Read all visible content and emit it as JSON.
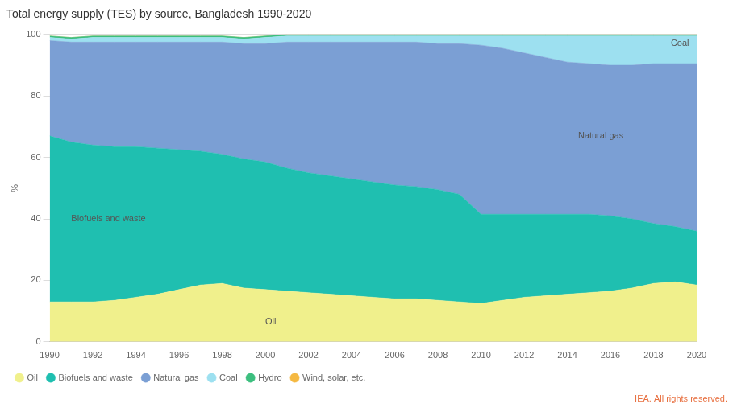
{
  "chart_data": {
    "type": "stacked_area",
    "title": "Total energy supply (TES) by source, Bangladesh 1990-2020",
    "y_label": "%",
    "x": [
      1990,
      1991,
      1992,
      1993,
      1994,
      1995,
      1996,
      1997,
      1998,
      1999,
      2000,
      2001,
      2002,
      2003,
      2004,
      2005,
      2006,
      2007,
      2008,
      2009,
      2010,
      2011,
      2012,
      2013,
      2014,
      2015,
      2016,
      2017,
      2018,
      2019,
      2020
    ],
    "series": [
      {
        "name": "Oil",
        "color": "#f0f08c",
        "values": [
          13.0,
          13.0,
          13.0,
          13.5,
          14.5,
          15.5,
          17.0,
          18.5,
          19.0,
          17.5,
          17.0,
          16.5,
          16.0,
          15.5,
          15.0,
          14.5,
          14.0,
          14.0,
          13.5,
          13.0,
          12.5,
          13.5,
          14.5,
          15.0,
          15.5,
          16.0,
          16.5,
          17.5,
          19.0,
          19.5,
          18.5
        ]
      },
      {
        "name": "Biofuels and waste",
        "color": "#1fbfb0",
        "values": [
          54.0,
          52.0,
          51.0,
          50.0,
          49.0,
          47.5,
          45.5,
          43.5,
          42.0,
          42.0,
          41.5,
          40.0,
          39.0,
          38.5,
          38.0,
          37.5,
          37.0,
          36.5,
          36.0,
          35.0,
          29.0,
          28.0,
          27.0,
          26.5,
          26.0,
          25.5,
          24.5,
          22.5,
          19.5,
          18.0,
          17.5
        ]
      },
      {
        "name": "Natural gas",
        "color": "#7b9fd4",
        "values": [
          31.0,
          32.5,
          33.5,
          34.0,
          34.0,
          34.5,
          35.0,
          35.5,
          36.5,
          37.5,
          38.5,
          41.0,
          42.5,
          43.5,
          44.5,
          45.5,
          46.5,
          47.0,
          47.5,
          49.0,
          55.0,
          54.0,
          52.5,
          51.0,
          49.5,
          49.0,
          49.0,
          50.0,
          52.0,
          53.0,
          54.5
        ]
      },
      {
        "name": "Coal",
        "color": "#9de0f0",
        "values": [
          1.0,
          1.0,
          1.5,
          1.5,
          1.5,
          1.5,
          1.5,
          1.5,
          1.5,
          1.5,
          2.0,
          2.0,
          2.0,
          2.0,
          2.0,
          2.0,
          2.0,
          2.0,
          2.5,
          2.5,
          3.0,
          4.0,
          5.5,
          7.0,
          8.5,
          9.0,
          9.5,
          9.5,
          9.0,
          9.0,
          9.0
        ]
      },
      {
        "name": "Hydro",
        "color": "#3dbf7f",
        "values": [
          0.5,
          0.5,
          0.5,
          0.5,
          0.5,
          0.5,
          0.5,
          0.5,
          0.5,
          0.5,
          0.5,
          0.5,
          0.5,
          0.5,
          0.5,
          0.5,
          0.5,
          0.5,
          0.5,
          0.5,
          0.5,
          0.5,
          0.5,
          0.5,
          0.5,
          0.5,
          0.5,
          0.5,
          0.5,
          0.5,
          0.5
        ]
      },
      {
        "name": "Wind, solar, etc.",
        "color": "#f5b942",
        "values": [
          0.0,
          0.0,
          0.0,
          0.0,
          0.0,
          0.0,
          0.0,
          0.0,
          0.0,
          0.0,
          0.0,
          0.0,
          0.0,
          0.0,
          0.0,
          0.0,
          0.0,
          0.0,
          0.0,
          0.0,
          0.0,
          0.0,
          0.0,
          0.0,
          0.0,
          0.0,
          0.0,
          0.0,
          0.0,
          0.0,
          0.0
        ]
      }
    ],
    "stacked": true,
    "xlim": [
      1990,
      2020
    ],
    "xticks": [
      1990,
      1992,
      1994,
      1996,
      1998,
      2000,
      2002,
      2004,
      2006,
      2008,
      2010,
      2012,
      2014,
      2016,
      2018,
      2020
    ],
    "ylim": [
      0,
      100
    ],
    "yticks": [
      0,
      20,
      40,
      60,
      80,
      100
    ],
    "grid": "y",
    "legend": "bottom",
    "annotations": [
      {
        "text": "Coal",
        "x": 2018.8,
        "y": 97.0
      },
      {
        "text": "Natural gas",
        "x": 2014.5,
        "y": 67.0
      },
      {
        "text": "Biofuels and waste",
        "x": 1991.0,
        "y": 40.0
      },
      {
        "text": "Oil",
        "x": 2000.0,
        "y": 6.5
      },
      {
        "text": "IEA. All rights reserved."
      }
    ]
  }
}
